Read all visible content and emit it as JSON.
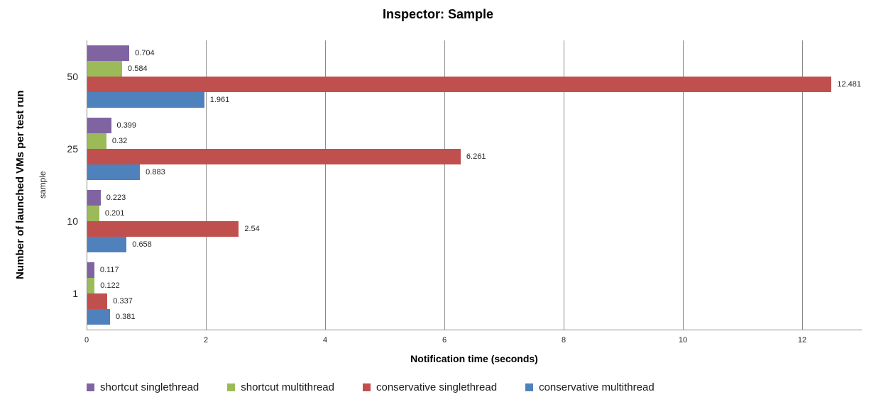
{
  "chart_data": {
    "type": "bar",
    "orientation": "horizontal",
    "title": "Inspector: Sample",
    "xlabel": "Notification time (seconds)",
    "ylabel": "Number of launched VMs per test run",
    "ylabel_inner": "sample",
    "categories": [
      "50",
      "25",
      "10",
      "1"
    ],
    "series": [
      {
        "name": "shortcut singlethread",
        "color": "#8064A2",
        "values": [
          0.704,
          0.399,
          0.223,
          0.117
        ],
        "labels": [
          "0.704",
          "0.399",
          "0.223",
          "0.117"
        ]
      },
      {
        "name": "shortcut multithread",
        "color": "#9BBB59",
        "values": [
          0.584,
          0.32,
          0.201,
          0.122
        ],
        "labels": [
          "0.584",
          "0.32",
          "0.201",
          "0.122"
        ]
      },
      {
        "name": "conservative singlethread",
        "color": "#C0504D",
        "values": [
          12.481,
          6.261,
          2.54,
          0.337
        ],
        "labels": [
          "12.481",
          "6.261",
          "2.54",
          "0.337"
        ]
      },
      {
        "name": "conservative multithread",
        "color": "#4F81BD",
        "values": [
          1.961,
          0.883,
          0.658,
          0.381
        ],
        "labels": [
          "1.961",
          "0.883",
          "0.658",
          "0.381"
        ]
      }
    ],
    "xticks": [
      0,
      2,
      4,
      6,
      8,
      10,
      12
    ],
    "xlim": [
      0,
      13
    ],
    "grid": true,
    "legend_position": "bottom",
    "gridline_color": "#8C8C8C",
    "text_color": "#262626"
  }
}
